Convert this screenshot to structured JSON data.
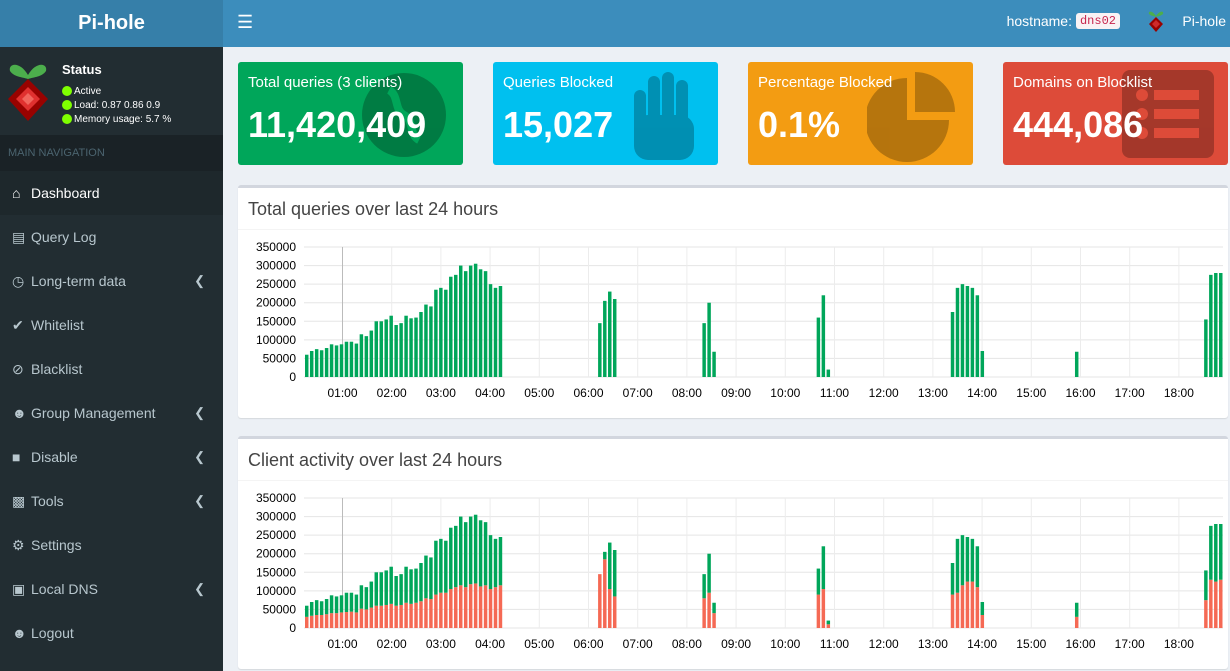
{
  "app": {
    "title": "Pi-hole"
  },
  "header": {
    "menu_icon": "hamburger-icon",
    "hostname_label": "hostname:",
    "hostname_value": "dns02",
    "user_name": "Pi-hole"
  },
  "status": {
    "title": "Status",
    "active": "Active",
    "load": "Load:  0.87  0.86  0.9",
    "memory": "Memory usage:  5.7 %"
  },
  "nav": {
    "header": "MAIN NAVIGATION",
    "items": [
      {
        "label": "Dashboard",
        "icon": "home-icon"
      },
      {
        "label": "Query Log",
        "icon": "file-icon"
      },
      {
        "label": "Long-term data",
        "icon": "clock-icon"
      },
      {
        "label": "Whitelist",
        "icon": "check-icon"
      },
      {
        "label": "Blacklist",
        "icon": "ban-icon"
      },
      {
        "label": "Group Management",
        "icon": "users-icon"
      },
      {
        "label": "Disable",
        "icon": "stop-icon"
      },
      {
        "label": "Tools",
        "icon": "folder-icon"
      },
      {
        "label": "Settings",
        "icon": "gears-icon"
      },
      {
        "label": "Local DNS",
        "icon": "address-book-icon"
      },
      {
        "label": "Logout",
        "icon": "user-times-icon"
      }
    ]
  },
  "stats": [
    {
      "label": "Total queries (3 clients)",
      "value": "11,420,409",
      "color": "#00a65a",
      "icon": "globe-icon"
    },
    {
      "label": "Queries Blocked",
      "value": "15,027",
      "color": "#00c0ef",
      "icon": "hand-icon"
    },
    {
      "label": "Percentage Blocked",
      "value": "0.1%",
      "color": "#f39c12",
      "icon": "pie-chart-icon"
    },
    {
      "label": "Domains on Blocklist",
      "value": "444,086",
      "color": "#dd4b39",
      "icon": "list-icon"
    }
  ],
  "charts": {
    "queries_title": "Total queries over last 24 hours",
    "clients_title": "Client activity over last 24 hours"
  },
  "chart_data": [
    {
      "type": "bar",
      "title": "Total queries over last 24 hours",
      "ylim": [
        0,
        350000
      ],
      "yticks": [
        "350000",
        "300000",
        "250000",
        "200000",
        "150000",
        "100000",
        "50000",
        "0"
      ],
      "xticks": [
        "01:00",
        "02:00",
        "03:00",
        "04:00",
        "05:00",
        "06:00",
        "07:00",
        "08:00",
        "09:00",
        "10:00",
        "11:00",
        "12:00",
        "13:00",
        "14:00",
        "15:00",
        "16:00",
        "17:00",
        "18:00"
      ],
      "values": [
        60000,
        70000,
        75000,
        72000,
        78000,
        88000,
        85000,
        88000,
        95000,
        95000,
        90000,
        115000,
        110000,
        125000,
        150000,
        150000,
        155000,
        165000,
        140000,
        145000,
        165000,
        158000,
        160000,
        175000,
        195000,
        190000,
        235000,
        240000,
        235000,
        270000,
        275000,
        300000,
        285000,
        300000,
        305000,
        290000,
        285000,
        250000,
        240000,
        245000,
        0,
        0,
        0,
        0,
        0,
        0,
        0,
        0,
        0,
        0,
        0,
        0,
        0,
        0,
        0,
        0,
        0,
        0,
        0,
        145000,
        205000,
        230000,
        210000,
        0,
        0,
        0,
        0,
        0,
        0,
        0,
        0,
        0,
        0,
        0,
        0,
        0,
        0,
        0,
        0,
        0,
        145000,
        200000,
        68000,
        0,
        0,
        0,
        0,
        0,
        0,
        0,
        0,
        0,
        0,
        0,
        0,
        0,
        0,
        0,
        0,
        0,
        0,
        0,
        0,
        160000,
        220000,
        20000,
        0,
        0,
        0,
        0,
        0,
        0,
        0,
        0,
        0,
        0,
        0,
        0,
        0,
        0,
        0,
        0,
        0,
        0,
        0,
        0,
        0,
        0,
        0,
        0,
        175000,
        240000,
        250000,
        245000,
        240000,
        220000,
        70000,
        0,
        0,
        0,
        0,
        0,
        0,
        0,
        0,
        0,
        0,
        0,
        0,
        0,
        0,
        0,
        0,
        0,
        0,
        68000,
        0,
        0,
        0,
        0,
        0,
        0,
        0,
        0,
        0,
        0,
        0,
        0,
        0,
        0,
        0,
        0,
        0,
        0,
        0,
        0,
        0,
        0,
        0,
        0,
        0,
        155000,
        275000,
        280000,
        280000
      ],
      "colors": {
        "bars": "#00a65a"
      }
    },
    {
      "type": "bar",
      "title": "Client activity over last 24 hours",
      "ylim": [
        0,
        350000
      ],
      "yticks": [
        "350000",
        "300000",
        "250000",
        "200000",
        "150000",
        "100000",
        "50000",
        "0"
      ],
      "xticks": [
        "01:00",
        "02:00",
        "03:00",
        "04:00",
        "05:00",
        "06:00",
        "07:00",
        "08:00",
        "09:00",
        "10:00",
        "11:00",
        "12:00",
        "13:00",
        "14:00",
        "15:00",
        "16:00",
        "17:00",
        "18:00"
      ],
      "series": [
        {
          "values": [
            30000,
            33000,
            35000,
            35000,
            37000,
            40000,
            40000,
            42000,
            43000,
            44000,
            42000,
            52000,
            50000,
            55000,
            60000,
            60000,
            62000,
            65000,
            60000,
            62000,
            68000,
            65000,
            68000,
            72000,
            80000,
            78000,
            90000,
            95000,
            95000,
            105000,
            110000,
            115000,
            110000,
            118000,
            120000,
            112000,
            115000,
            105000,
            110000,
            115000,
            0,
            0,
            0,
            0,
            0,
            0,
            0,
            0,
            0,
            0,
            0,
            0,
            0,
            0,
            0,
            0,
            0,
            0,
            0,
            145000,
            185000,
            105000,
            85000,
            0,
            0,
            0,
            0,
            0,
            0,
            0,
            0,
            0,
            0,
            0,
            0,
            0,
            0,
            0,
            0,
            0,
            80000,
            95000,
            40000,
            0,
            0,
            0,
            0,
            0,
            0,
            0,
            0,
            0,
            0,
            0,
            0,
            0,
            0,
            0,
            0,
            0,
            0,
            0,
            0,
            90000,
            105000,
            10000,
            0,
            0,
            0,
            0,
            0,
            0,
            0,
            0,
            0,
            0,
            0,
            0,
            0,
            0,
            0,
            0,
            0,
            0,
            0,
            0,
            0,
            0,
            0,
            0,
            90000,
            95000,
            115000,
            125000,
            125000,
            110000,
            35000,
            0,
            0,
            0,
            0,
            0,
            0,
            0,
            0,
            0,
            0,
            0,
            0,
            0,
            0,
            0,
            0,
            0,
            0,
            30000,
            0,
            0,
            0,
            0,
            0,
            0,
            0,
            0,
            0,
            0,
            0,
            0,
            0,
            0,
            0,
            0,
            0,
            0,
            0,
            0,
            0,
            0,
            0,
            0,
            0,
            75000,
            130000,
            125000,
            130000
          ],
          "color": "#f56954"
        },
        {
          "values": [
            30000,
            37000,
            40000,
            37000,
            41000,
            48000,
            45000,
            46000,
            52000,
            51000,
            48000,
            63000,
            60000,
            70000,
            90000,
            90000,
            93000,
            100000,
            80000,
            83000,
            97000,
            93000,
            92000,
            103000,
            115000,
            112000,
            145000,
            145000,
            140000,
            165000,
            165000,
            185000,
            175000,
            182000,
            185000,
            178000,
            170000,
            145000,
            130000,
            130000,
            0,
            0,
            0,
            0,
            0,
            0,
            0,
            0,
            0,
            0,
            0,
            0,
            0,
            0,
            0,
            0,
            0,
            0,
            0,
            0,
            20000,
            125000,
            125000,
            0,
            0,
            0,
            0,
            0,
            0,
            0,
            0,
            0,
            0,
            0,
            0,
            0,
            0,
            0,
            0,
            0,
            65000,
            105000,
            28000,
            0,
            0,
            0,
            0,
            0,
            0,
            0,
            0,
            0,
            0,
            0,
            0,
            0,
            0,
            0,
            0,
            0,
            0,
            0,
            0,
            70000,
            115000,
            10000,
            0,
            0,
            0,
            0,
            0,
            0,
            0,
            0,
            0,
            0,
            0,
            0,
            0,
            0,
            0,
            0,
            0,
            0,
            0,
            0,
            0,
            0,
            0,
            0,
            85000,
            145000,
            135000,
            120000,
            115000,
            110000,
            35000,
            0,
            0,
            0,
            0,
            0,
            0,
            0,
            0,
            0,
            0,
            0,
            0,
            0,
            0,
            0,
            0,
            0,
            0,
            38000,
            0,
            0,
            0,
            0,
            0,
            0,
            0,
            0,
            0,
            0,
            0,
            0,
            0,
            0,
            0,
            0,
            0,
            0,
            0,
            0,
            0,
            0,
            0,
            0,
            0,
            80000,
            145000,
            155000,
            150000
          ],
          "color": "#00a65a"
        }
      ]
    }
  ]
}
